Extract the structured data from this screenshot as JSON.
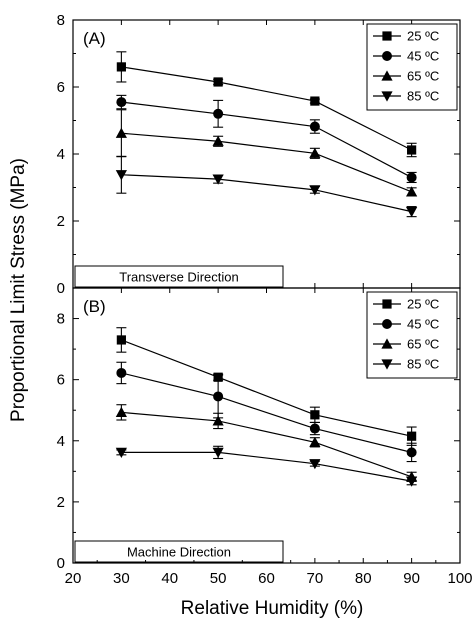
{
  "chart_data": {
    "type": "line",
    "ylabel": "Proportional Limit Stress (MPa)",
    "xlabel": "Relative Humidity (%)",
    "xlim": [
      20,
      100
    ],
    "xticks": [
      "20",
      "30",
      "40",
      "50",
      "60",
      "70",
      "80",
      "90",
      "100"
    ],
    "panels": [
      {
        "tag": "(A)",
        "direction": "Transverse Direction",
        "ylim": [
          0,
          8
        ],
        "yticks": [
          "0",
          "2",
          "4",
          "6",
          "8"
        ],
        "legend_position": "top-right",
        "x": [
          30,
          50,
          70,
          90
        ],
        "series": [
          {
            "name": "25 ºC",
            "marker": "square",
            "values": [
              6.6,
              6.15,
              5.58,
              4.12
            ],
            "errors": [
              0.45,
              0.08,
              0.06,
              0.2
            ]
          },
          {
            "name": "45 ºC",
            "marker": "circle",
            "values": [
              5.55,
              5.2,
              4.82,
              3.3
            ],
            "errors": [
              0.2,
              0.4,
              0.2,
              0.15
            ]
          },
          {
            "name": "65 ºC",
            "marker": "triangle-up",
            "values": [
              4.62,
              4.38,
              4.02,
              2.87
            ],
            "errors": [
              0.7,
              0.15,
              0.15,
              0.12
            ]
          },
          {
            "name": "85 ºC",
            "marker": "triangle-down",
            "values": [
              3.38,
              3.25,
              2.93,
              2.28
            ],
            "errors": [
              0.55,
              0.12,
              0.1,
              0.15
            ]
          }
        ]
      },
      {
        "tag": "(B)",
        "direction": "Machine Direction",
        "ylim": [
          0,
          9
        ],
        "yticks": [
          "0",
          "2",
          "4",
          "6",
          "8"
        ],
        "legend_position": "top-right",
        "x": [
          30,
          50,
          70,
          90
        ],
        "series": [
          {
            "name": "25 ºC",
            "marker": "square",
            "values": [
              7.3,
              6.08,
              4.85,
              4.15
            ],
            "errors": [
              0.4,
              0.1,
              0.25,
              0.3
            ]
          },
          {
            "name": "45 ºC",
            "marker": "circle",
            "values": [
              6.22,
              5.45,
              4.4,
              3.62
            ],
            "errors": [
              0.35,
              0.7,
              0.2,
              0.3
            ]
          },
          {
            "name": "65 ºC",
            "marker": "triangle-up",
            "values": [
              4.93,
              4.65,
              3.95,
              2.82
            ],
            "errors": [
              0.25,
              0.25,
              0.15,
              0.15
            ]
          },
          {
            "name": "85 ºC",
            "marker": "triangle-down",
            "values": [
              3.62,
              3.62,
              3.25,
              2.68
            ],
            "errors": [
              0.08,
              0.2,
              0.08,
              0.12
            ]
          }
        ]
      }
    ]
  }
}
